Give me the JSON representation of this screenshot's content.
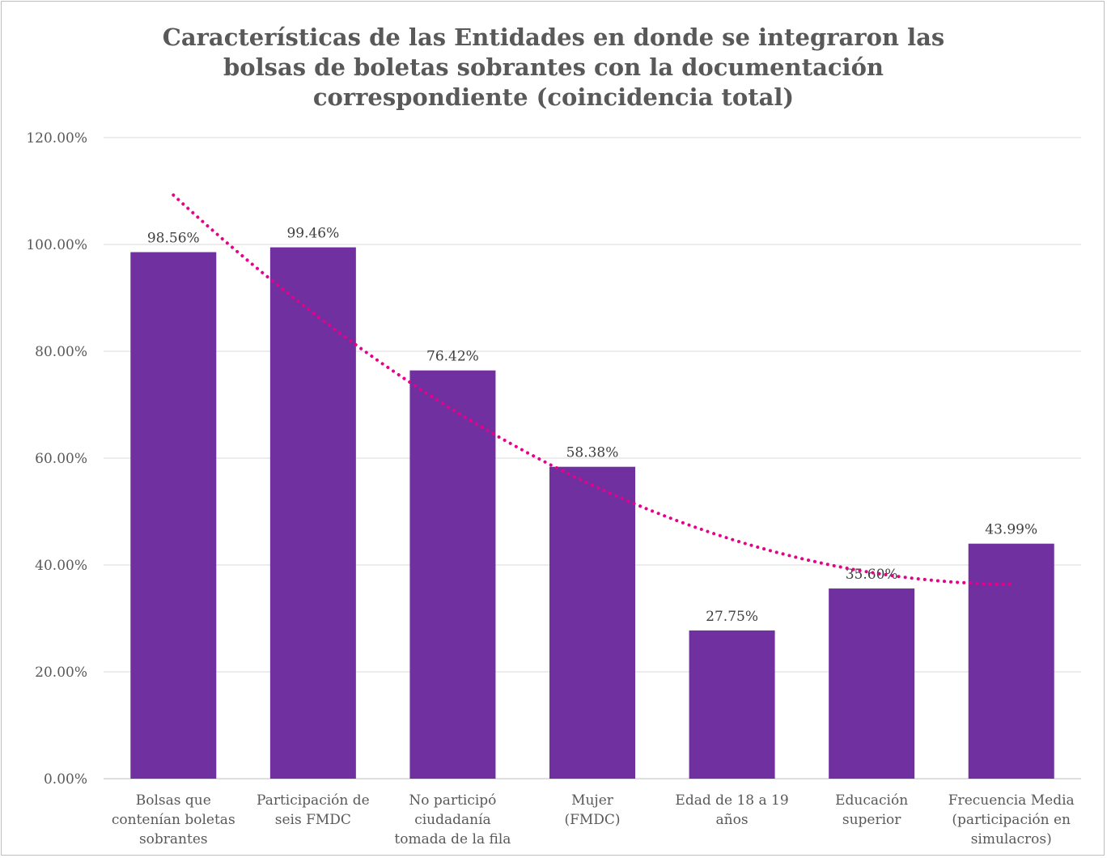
{
  "chart_data": {
    "type": "bar",
    "title_lines": [
      "Características de las Entidades en donde se integraron las",
      "bolsas de boletas sobrantes con la documentación",
      "correspondiente (coincidencia total)"
    ],
    "categories": [
      [
        "Bolsas que",
        "contenían boletas",
        "sobrantes"
      ],
      [
        "Participación de",
        "seis FMDC"
      ],
      [
        "No participó",
        "ciudadanía",
        "tomada de la fila"
      ],
      [
        "Mujer",
        "(FMDC)"
      ],
      [
        "Edad de 18 a 19",
        "años"
      ],
      [
        "Educación",
        "superior"
      ],
      [
        "Frecuencia Media",
        "(participación en",
        "simulacros)"
      ]
    ],
    "values": [
      98.56,
      99.46,
      76.42,
      58.38,
      27.75,
      35.6,
      43.99
    ],
    "data_labels": [
      "98.56%",
      "99.46%",
      "76.42%",
      "58.38%",
      "27.75%",
      "35.60%",
      "43.99%"
    ],
    "yticks": [
      "0.00%",
      "20.00%",
      "40.00%",
      "60.00%",
      "80.00%",
      "100.00%",
      "120.00%"
    ],
    "ylim": [
      0,
      120
    ],
    "grid": true,
    "trendline": {
      "type": "polynomial",
      "style": "dotted",
      "color": "#e6008a"
    },
    "bar_color": "#7030a0",
    "gridline_color": "#d9d9d9"
  }
}
